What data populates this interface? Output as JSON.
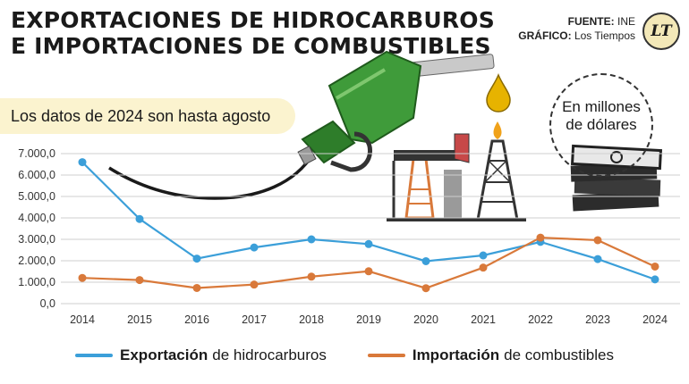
{
  "header": {
    "title_line1": "EXPORTACIONES DE HIDROCARBUROS",
    "title_line2": "E IMPORTACIONES DE COMBUSTIBLES",
    "source_label": "FUENTE:",
    "source_value": "INE",
    "graphic_label": "GRÁFICO:",
    "graphic_value": "Los Tiempos",
    "logo_text": "LT"
  },
  "note": "Los datos de 2024 son hasta agosto",
  "units_line1": "En millones",
  "units_line2": "de dólares",
  "colors": {
    "export": "#3b9fd9",
    "import": "#d9793a",
    "grid": "#cfcfcf"
  },
  "chart_data": {
    "type": "line",
    "categories": [
      "2014",
      "2015",
      "2016",
      "2017",
      "2018",
      "2019",
      "2020",
      "2021",
      "2022",
      "2023",
      "2024"
    ],
    "y_ticks": [
      "7.000,0",
      "6.000,0",
      "5.000,0",
      "4.000,0",
      "3.000,0",
      "2.000,0",
      "1.000,0",
      "0,0"
    ],
    "ylim": [
      0,
      7000
    ],
    "grid": true,
    "legend_position": "bottom",
    "series": [
      {
        "name_bold": "Exportación",
        "name_rest": "de hidrocarburos",
        "key": "export",
        "values": [
          6600,
          3950,
          2100,
          2620,
          3000,
          2780,
          1980,
          2250,
          2880,
          2080,
          1130
        ]
      },
      {
        "name_bold": "Importación",
        "name_rest": "de combustibles",
        "key": "import",
        "values": [
          1200,
          1100,
          730,
          890,
          1260,
          1510,
          720,
          1680,
          3080,
          2960,
          1730
        ]
      }
    ]
  }
}
